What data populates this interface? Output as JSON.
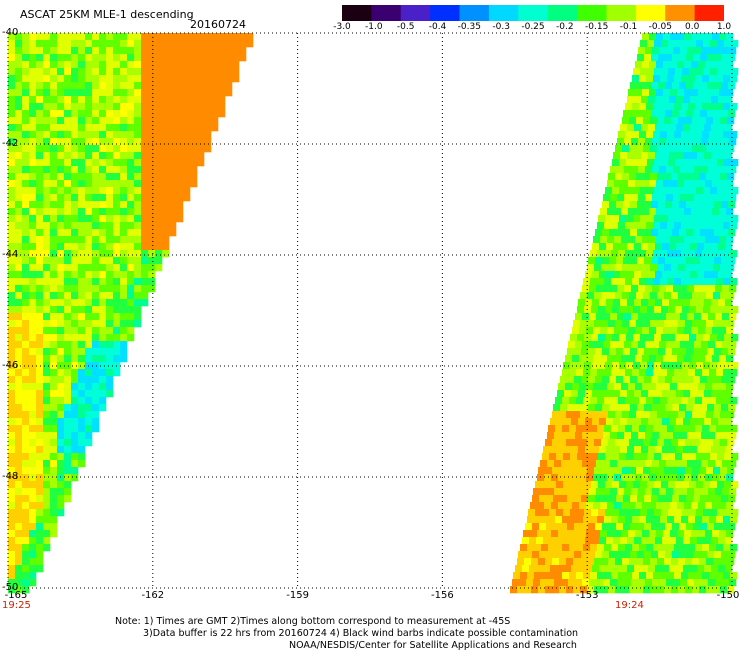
{
  "header": {
    "title": "ASCAT 25KM MLE-1 descending",
    "date": "20160724"
  },
  "colorbar": {
    "labels": [
      "-3.0",
      "-1.0",
      "-0.5",
      "-0.4",
      "-0.35",
      "-0.3",
      "-0.25",
      "-0.2",
      "-0.15",
      "-0.1",
      "-0.05",
      "0.0",
      "1.0"
    ],
    "colors": [
      "#1a0010",
      "#3a0070",
      "#4a20c8",
      "#0030ff",
      "#0090ff",
      "#00d8ff",
      "#00ffd0",
      "#00ff80",
      "#40ff00",
      "#a0ff00",
      "#ffff00",
      "#ff9000",
      "#ff2000"
    ]
  },
  "axes": {
    "lat_labels": [
      "-40",
      "-42",
      "-44",
      "-46",
      "-48",
      "-50"
    ],
    "lon_labels": [
      "-165",
      "-162",
      "-159",
      "-156",
      "-153",
      "-150"
    ]
  },
  "times": {
    "left": "19:25",
    "right": "19:24"
  },
  "notes": [
    "Note: 1) Times are GMT 2)Times along bottom correspond to measurement at -45S",
    "3)Data buffer is 22 hrs from 20160724 4) Black wind barbs indicate possible contamination",
    "NOAA/NESDIS/Center for Satellite Applications and Research"
  ]
}
